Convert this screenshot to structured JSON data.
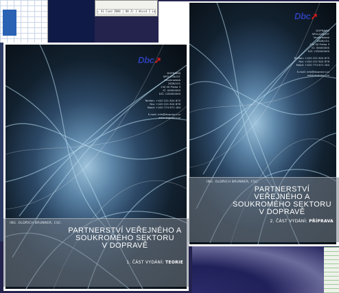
{
  "background": {
    "window_strip_text": "▸ A1 Cond  ZNXB | NA  Zr 2 Winsd  2 Lasts"
  },
  "brochures": [
    {
      "id": "front",
      "logo": "Dbc",
      "contact_lines": [
        "DOPRAVNÍ",
        "SPOLEČNOST",
        "Vinohradská",
        "2828/151",
        "130 00 Praha 3",
        "IČ: 00000000",
        "DIČ: CZ0000000",
        "",
        "Telefon: +420 221 824 875",
        "Fax: +420 221 824 876",
        "Mobil: +420 774 671 184",
        "",
        "E-mail: info@dopravni.cz",
        "www.dopravni.cz"
      ],
      "author": "ING. OLDŘICH BRUNNER, CSC.",
      "title_lines": [
        "PARTNERSTVÍ VEŘEJNÉHO A",
        "SOUKROMÉHO SEKTORU",
        "V DOPRAVĚ"
      ],
      "edition_prefix": "1. ČÁST",
      "edition_label": "1. ČÁST VYDÁNÍ:",
      "edition_bold": "TEORIE",
      "accent": "#2d3fb0"
    },
    {
      "id": "back",
      "logo": "Dbc",
      "contact_lines": [
        "DOPRAVNÍ",
        "SPOLEČNOST",
        "Vinohradská",
        "2828/151",
        "130 00 Praha 3",
        "IČ: 00000000",
        "DIČ: CZ0000000",
        "",
        "Telefon: +420 221 824 875",
        "Fax: +420 221 824 876",
        "Mobil: +420 774 671 184",
        "",
        "E-mail: info@dopravni.cz",
        "www.dopravni.cz"
      ],
      "author": "ING. OLDŘICH BRUNNER, CSC.",
      "title_lines": [
        "PARTNERSTVÍ VEŘEJNÉHO A",
        "SOUKROMÉHO SEKTORU",
        "V DOPRAVĚ"
      ],
      "edition_label": "2. ČÁST VYDÁNÍ:",
      "edition_bold": "PŘÍPRAVA",
      "accent": "#2d3fb0"
    }
  ]
}
